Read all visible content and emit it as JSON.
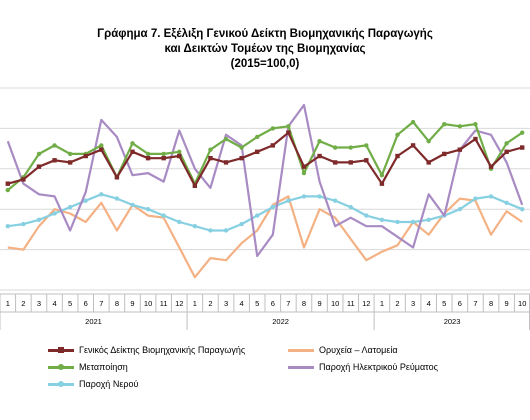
{
  "title": {
    "line1": "Γράφημα 7. Εξέλιξη Γενικού Δείκτη Βιομηχανικής Παραγωγής",
    "line2": "και Δεικτών Τομέων της Βιομηχανίας",
    "line3": "(2015=100,0)"
  },
  "chart_data": {
    "type": "line",
    "title": "Γράφημα 7. Εξέλιξη Γενικού Δείκτη Βιομηχανικής Παραγωγής και Δεικτών Τομέων της Βιομηχανίας (2015=100,0)",
    "categories": [
      "1",
      "2",
      "3",
      "4",
      "5",
      "6",
      "7",
      "8",
      "9",
      "10",
      "11",
      "12",
      "1",
      "2",
      "3",
      "4",
      "5",
      "6",
      "7",
      "8",
      "9",
      "10",
      "11",
      "12",
      "1",
      "2",
      "3",
      "4",
      "5",
      "6",
      "7",
      "8",
      "9",
      "10"
    ],
    "year_groups": [
      {
        "label": "2021",
        "months": 12
      },
      {
        "label": "2022",
        "months": 12
      },
      {
        "label": "2023",
        "months": 10
      }
    ],
    "ylim": [
      50,
      145
    ],
    "grid": true,
    "legend_position": "bottom",
    "series": [
      {
        "name": "Γενικός Δείκτης Βιομηχανικής Παραγωγής",
        "color": "#7f2a2a",
        "marker": "square",
        "values": [
          100,
          102,
          108,
          111,
          110,
          113,
          116,
          103,
          115,
          112,
          112,
          113,
          99,
          112,
          110,
          112,
          115,
          118,
          124,
          108,
          113,
          110,
          110,
          111,
          100,
          113,
          118,
          110,
          114,
          116,
          121,
          108,
          115,
          117
        ]
      },
      {
        "name": "Ορυχεία – Λατομεία",
        "color": "#f4b183",
        "marker": "none",
        "values": [
          70,
          69,
          80,
          88,
          86,
          82,
          91,
          78,
          90,
          85,
          84,
          70,
          56,
          65,
          64,
          72,
          78,
          90,
          94,
          70,
          88,
          84,
          74,
          64,
          68,
          71,
          82,
          76,
          86,
          93,
          92,
          76,
          87,
          82
        ]
      },
      {
        "name": "Μεταποίηση",
        "color": "#70ad47",
        "marker": "circle",
        "values": [
          97,
          103,
          114,
          118,
          114,
          114,
          118,
          103,
          119,
          114,
          114,
          115,
          100,
          116,
          121,
          117,
          122,
          126,
          127,
          105,
          120,
          117,
          117,
          118,
          104,
          123,
          129,
          120,
          128,
          127,
          128,
          107,
          119,
          124
        ]
      },
      {
        "name": "Παροχή Ηλεκτρικού Ρεύματος",
        "color": "#a98bc4",
        "marker": "none",
        "values": [
          120,
          100,
          95,
          94,
          78,
          96,
          130,
          122,
          104,
          105,
          101,
          125,
          107,
          98,
          123,
          118,
          66,
          76,
          127,
          137,
          101,
          80,
          84,
          80,
          80,
          75,
          70,
          95,
          85,
          116,
          125,
          123,
          110,
          90
        ]
      },
      {
        "name": "Παροχή Νερού",
        "color": "#86d0e2",
        "marker": "circle",
        "values": [
          80,
          81,
          83,
          86,
          89,
          92,
          95,
          93,
          90,
          88,
          85,
          82,
          80,
          78,
          78,
          81,
          85,
          89,
          92,
          94,
          94,
          92,
          89,
          85,
          83,
          82,
          82,
          83,
          85,
          88,
          93,
          94,
          91,
          88
        ]
      }
    ]
  }
}
